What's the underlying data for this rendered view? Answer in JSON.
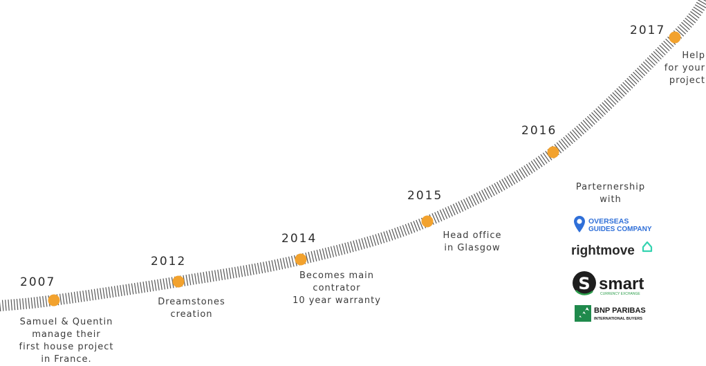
{
  "timeline": {
    "milestones": [
      {
        "year": "2007",
        "lines": [
          "Samuel & Quentin",
          "manage their",
          "first house project",
          "in France."
        ]
      },
      {
        "year": "2012",
        "lines": [
          "Dreamstones",
          "creation"
        ]
      },
      {
        "year": "2014",
        "lines": [
          "Becomes main",
          "contrator",
          "10 year warranty"
        ]
      },
      {
        "year": "2015",
        "lines": [
          "Head office",
          "in Glasgow"
        ]
      },
      {
        "year": "2016",
        "lines": []
      },
      {
        "year": "2017",
        "lines": [
          "Help",
          "for your",
          "project"
        ]
      }
    ],
    "dot_color": "#f2a22e",
    "track_color": "#555555"
  },
  "partners": {
    "title_line1": "Parternership",
    "title_line2": "with",
    "logos": [
      {
        "name": "overseas-guides-company",
        "line1": "OVERSEAS",
        "line2": "GUIDES COMPANY",
        "color": "#2f6fd8",
        "icon": "map-pin-icon"
      },
      {
        "name": "rightmove",
        "text": "rightmove",
        "color": "#2a2a2a",
        "accent": "#34d3b0",
        "icon": "house-icon"
      },
      {
        "name": "smart-currency-exchange",
        "text": "smart",
        "sub": "CURRENCY EXCHANGE",
        "color": "#1e1e1e",
        "accent": "#2a9d4a",
        "icon": "s-circle-icon"
      },
      {
        "name": "bnp-paribas",
        "line1": "BNP PARIBAS",
        "line2": "INTERNATIONAL BUYERS",
        "color": "#1a1a1a",
        "accent": "#1f8a4c",
        "icon": "stars-square-icon"
      }
    ]
  }
}
